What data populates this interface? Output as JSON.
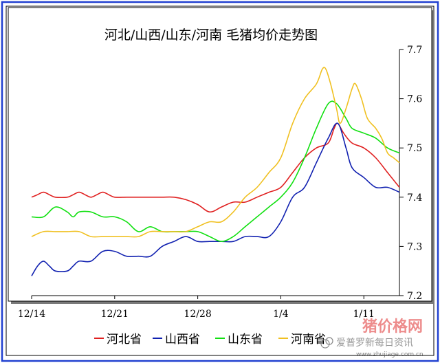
{
  "chart_data": {
    "type": "line",
    "title": "河北/山西/山东/河南 毛猪均价走势图",
    "x_tick_labels": [
      "12/14",
      "12/21",
      "12/28",
      "1/4",
      "1/11"
    ],
    "x_tick_positions": [
      0,
      7,
      14,
      21,
      28
    ],
    "xlim": [
      0,
      31
    ],
    "ylim": [
      7.2,
      7.7
    ],
    "y_ticks": [
      "7.2",
      "7.3",
      "7.4",
      "7.5",
      "7.6",
      "7.7"
    ],
    "y_axis_side": "right",
    "grid": false,
    "legend_placement": "bottom",
    "series": [
      {
        "name": "河北省",
        "color": "#e02020",
        "points": [
          [
            0,
            7.4
          ],
          [
            0.5,
            7.405
          ],
          [
            1,
            7.41
          ],
          [
            1.5,
            7.405
          ],
          [
            2,
            7.4
          ],
          [
            3,
            7.4
          ],
          [
            3.5,
            7.405
          ],
          [
            4,
            7.41
          ],
          [
            4.5,
            7.405
          ],
          [
            5,
            7.4
          ],
          [
            5.5,
            7.405
          ],
          [
            6,
            7.41
          ],
          [
            6.5,
            7.405
          ],
          [
            7,
            7.4
          ],
          [
            8,
            7.4
          ],
          [
            9,
            7.4
          ],
          [
            10,
            7.4
          ],
          [
            11,
            7.4
          ],
          [
            12,
            7.4
          ],
          [
            13,
            7.395
          ],
          [
            14,
            7.385
          ],
          [
            15,
            7.37
          ],
          [
            16,
            7.38
          ],
          [
            17,
            7.39
          ],
          [
            18,
            7.39
          ],
          [
            19,
            7.4
          ],
          [
            20,
            7.41
          ],
          [
            21,
            7.42
          ],
          [
            22,
            7.45
          ],
          [
            23,
            7.48
          ],
          [
            24,
            7.5
          ],
          [
            25,
            7.51
          ],
          [
            25.5,
            7.54
          ],
          [
            25.8,
            7.55
          ],
          [
            26.3,
            7.53
          ],
          [
            27,
            7.51
          ],
          [
            28,
            7.5
          ],
          [
            29,
            7.48
          ],
          [
            30,
            7.45
          ],
          [
            31,
            7.42
          ]
        ]
      },
      {
        "name": "山西省",
        "color": "#1020b0",
        "points": [
          [
            0,
            7.24
          ],
          [
            0.5,
            7.26
          ],
          [
            1,
            7.27
          ],
          [
            1.5,
            7.26
          ],
          [
            2,
            7.25
          ],
          [
            3,
            7.25
          ],
          [
            3.5,
            7.26
          ],
          [
            4,
            7.27
          ],
          [
            5,
            7.27
          ],
          [
            6,
            7.29
          ],
          [
            7,
            7.29
          ],
          [
            8,
            7.28
          ],
          [
            9,
            7.28
          ],
          [
            10,
            7.28
          ],
          [
            11,
            7.3
          ],
          [
            12,
            7.31
          ],
          [
            13,
            7.32
          ],
          [
            14,
            7.31
          ],
          [
            15,
            7.31
          ],
          [
            16,
            7.31
          ],
          [
            17,
            7.31
          ],
          [
            18,
            7.32
          ],
          [
            19,
            7.32
          ],
          [
            20,
            7.32
          ],
          [
            21,
            7.35
          ],
          [
            22,
            7.4
          ],
          [
            23,
            7.42
          ],
          [
            24,
            7.47
          ],
          [
            25,
            7.52
          ],
          [
            25.8,
            7.55
          ],
          [
            26.5,
            7.5
          ],
          [
            27,
            7.46
          ],
          [
            28,
            7.44
          ],
          [
            29,
            7.42
          ],
          [
            30,
            7.42
          ],
          [
            31,
            7.41
          ]
        ]
      },
      {
        "name": "山东省",
        "color": "#10e010",
        "points": [
          [
            0,
            7.36
          ],
          [
            1,
            7.36
          ],
          [
            2,
            7.38
          ],
          [
            3,
            7.37
          ],
          [
            3.5,
            7.36
          ],
          [
            4,
            7.37
          ],
          [
            5,
            7.37
          ],
          [
            6,
            7.36
          ],
          [
            7,
            7.36
          ],
          [
            8,
            7.35
          ],
          [
            9,
            7.33
          ],
          [
            10,
            7.34
          ],
          [
            11,
            7.33
          ],
          [
            12,
            7.33
          ],
          [
            13,
            7.33
          ],
          [
            14,
            7.33
          ],
          [
            15,
            7.32
          ],
          [
            16,
            7.31
          ],
          [
            17,
            7.32
          ],
          [
            18,
            7.34
          ],
          [
            19,
            7.36
          ],
          [
            20,
            7.38
          ],
          [
            21,
            7.4
          ],
          [
            22,
            7.43
          ],
          [
            23,
            7.48
          ],
          [
            24,
            7.54
          ],
          [
            25,
            7.59
          ],
          [
            25.7,
            7.59
          ],
          [
            26.5,
            7.56
          ],
          [
            27,
            7.54
          ],
          [
            28,
            7.53
          ],
          [
            29,
            7.52
          ],
          [
            30,
            7.5
          ],
          [
            31,
            7.49
          ]
        ]
      },
      {
        "name": "河南省",
        "color": "#f0c020",
        "points": [
          [
            0,
            7.32
          ],
          [
            1,
            7.33
          ],
          [
            2,
            7.33
          ],
          [
            3,
            7.33
          ],
          [
            4,
            7.33
          ],
          [
            5,
            7.32
          ],
          [
            6,
            7.32
          ],
          [
            7,
            7.32
          ],
          [
            8,
            7.32
          ],
          [
            9,
            7.32
          ],
          [
            10,
            7.33
          ],
          [
            11,
            7.33
          ],
          [
            12,
            7.33
          ],
          [
            13,
            7.33
          ],
          [
            14,
            7.34
          ],
          [
            15,
            7.35
          ],
          [
            16,
            7.35
          ],
          [
            17,
            7.37
          ],
          [
            18,
            7.4
          ],
          [
            19,
            7.42
          ],
          [
            20,
            7.45
          ],
          [
            21,
            7.48
          ],
          [
            22,
            7.55
          ],
          [
            23,
            7.6
          ],
          [
            24,
            7.63
          ],
          [
            24.5,
            7.66
          ],
          [
            24.8,
            7.66
          ],
          [
            25.2,
            7.63
          ],
          [
            25.7,
            7.58
          ],
          [
            26,
            7.55
          ],
          [
            26.5,
            7.58
          ],
          [
            27,
            7.62
          ],
          [
            27.3,
            7.63
          ],
          [
            27.8,
            7.6
          ],
          [
            28.3,
            7.56
          ],
          [
            29,
            7.54
          ],
          [
            29.5,
            7.52
          ],
          [
            30,
            7.49
          ],
          [
            30.5,
            7.48
          ],
          [
            31,
            7.47
          ]
        ]
      }
    ]
  },
  "watermark": {
    "brand": "猪价格网",
    "caption": "爱普罗新每日资讯",
    "url": "www.zhujiage.com.cn"
  }
}
